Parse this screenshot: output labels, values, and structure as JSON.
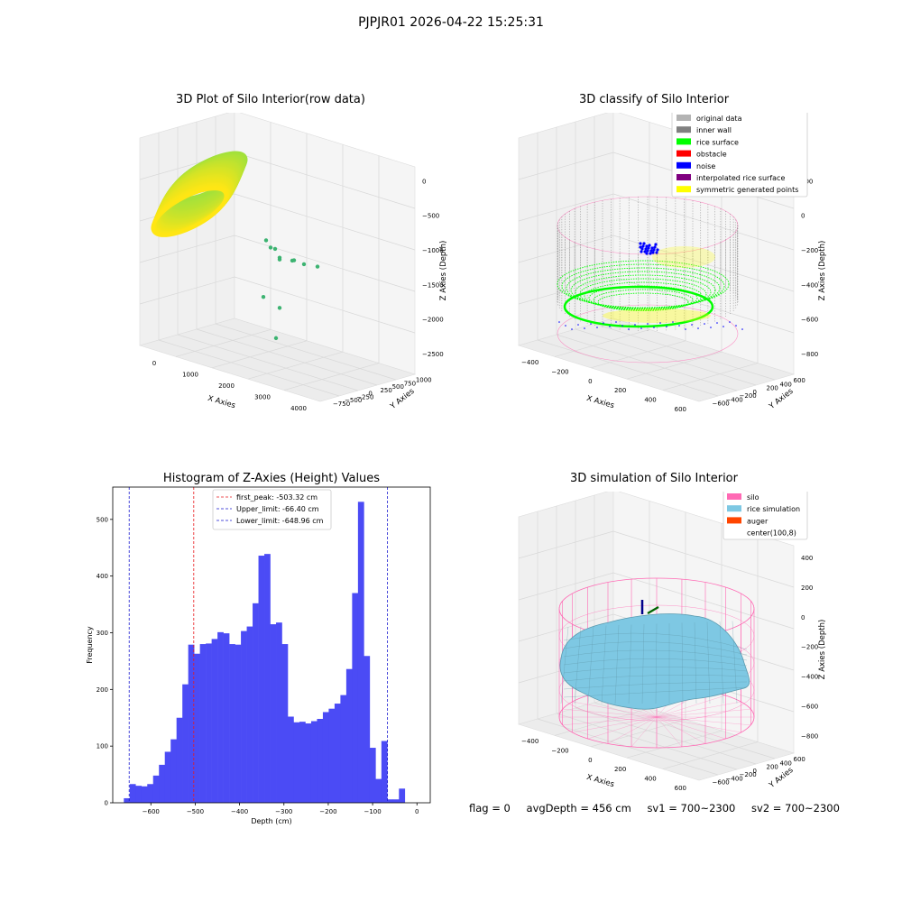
{
  "figure": {
    "suptitle": "PJPJR01 2026-04-22 15:25:31",
    "footer": {
      "flag": "flag = 0",
      "avg_depth": "avgDepth = 456 cm",
      "sv1": "sv1 = 700~2300",
      "sv2": "sv2 = 700~2300"
    }
  },
  "colors": {
    "hist_bar": "#4b4bf5",
    "first_peak_line": "#e8191c",
    "limit_line": "#1a1ad0",
    "original_data": "#b3b3b3",
    "inner_wall": "#808080",
    "rice_surface": "#00ff00",
    "obstacle": "#ff0000",
    "noise": "#0000ff",
    "interpolated_rice_surface": "#800080",
    "symmetric_generated_points": "#ffff00",
    "silo": "#ff69b4",
    "rice_simulation": "#7ec8e3",
    "auger": "#ff4500"
  },
  "chart_data": [
    {
      "type": "scatter",
      "projection": "3d",
      "title": "3D Plot of Silo Interior(row data)",
      "xlabel": "X Axies",
      "ylabel": "Y Axies",
      "zlabel": "Z Axies (Depth)",
      "x_ticks": [
        "0",
        "1000",
        "2000",
        "3000",
        "4000"
      ],
      "y_ticks": [
        "−750",
        "−500",
        "−250",
        "0",
        "250",
        "500",
        "750",
        "1000"
      ],
      "z_ticks": [
        "0",
        "−500",
        "−1000",
        "−1500",
        "−2000",
        "−2500"
      ],
      "xlim": [
        -500,
        4500
      ],
      "ylim": [
        -750,
        1000
      ],
      "zlim": [
        -2500,
        0
      ],
      "series": [
        {
          "points": [
            {
              "x": 1500,
              "y": 250,
              "z": -1150
            },
            {
              "x": 1700,
              "y": 200,
              "z": -1200
            },
            {
              "x": 1900,
              "y": 150,
              "z": -1180
            },
            {
              "x": 1800,
              "y": 300,
              "z": -1350
            },
            {
              "x": 2100,
              "y": 100,
              "z": -1250
            },
            {
              "x": 2600,
              "y": 0,
              "z": -1200
            },
            {
              "x": 2800,
              "y": -100,
              "z": -1150
            },
            {
              "x": 3000,
              "y": -50,
              "z": -1180
            },
            {
              "x": 3600,
              "y": -200,
              "z": -1100
            },
            {
              "x": 2700,
              "y": -300,
              "z": -1700
            },
            {
              "x": 1200,
              "y": 400,
              "z": -1900
            },
            {
              "x": 2900,
              "y": -500,
              "z": -2000
            }
          ]
        }
      ]
    },
    {
      "type": "scatter",
      "projection": "3d",
      "title": "3D classify of Silo Interior",
      "xlabel": "X Axies",
      "ylabel": "Y Axies",
      "zlabel": "Z Axies (Depth)",
      "x_ticks": [
        "−400",
        "−200",
        "0",
        "200",
        "400",
        "600"
      ],
      "y_ticks": [
        "−600",
        "−400",
        "−200",
        "0",
        "200",
        "400",
        "600"
      ],
      "z_ticks": [
        "200",
        "0",
        "−200",
        "−400",
        "−600",
        "−800"
      ],
      "xlim": [
        -500,
        700
      ],
      "ylim": [
        -650,
        650
      ],
      "zlim": [
        -900,
        300
      ],
      "legend": {
        "position": "top-right",
        "entries": [
          "original data",
          "inner wall",
          "rice surface",
          "obstacle",
          "noise",
          "interpolated rice surface",
          "symmetric generated points"
        ]
      }
    },
    {
      "type": "bar",
      "title": "Histogram of Z-Axies (Height) Values",
      "xlabel": "Depth (cm)",
      "ylabel": "Frequency",
      "xlim": [
        -686,
        30
      ],
      "ylim": [
        0,
        557
      ],
      "x_ticks": [
        -600,
        -500,
        -400,
        -300,
        -200,
        -100,
        0
      ],
      "x_tick_labels": [
        "−600",
        "−500",
        "−400",
        "−300",
        "−200",
        "−100",
        "0"
      ],
      "y_ticks": [
        0,
        100,
        200,
        300,
        400,
        500
      ],
      "bin_start": -661,
      "bin_width": 13.2,
      "values": [
        8,
        33,
        30,
        29,
        33,
        48,
        67,
        90,
        112,
        150,
        209,
        279,
        263,
        280,
        281,
        289,
        301,
        299,
        280,
        279,
        303,
        311,
        352,
        436,
        439,
        315,
        318,
        280,
        152,
        142,
        143,
        140,
        144,
        148,
        160,
        166,
        175,
        190,
        236,
        370,
        531,
        259,
        97,
        42,
        109,
        6,
        6,
        25
      ],
      "vlines": [
        {
          "x": -503.32,
          "style": "first_peak",
          "label": "first_peak: -503.32 cm"
        },
        {
          "x": -66.4,
          "style": "limit",
          "label": "Upper_limit: -66.40 cm"
        },
        {
          "x": -648.96,
          "style": "limit",
          "label": "Lower_limit: -648.96 cm"
        }
      ],
      "legend": {
        "position": "top-center"
      }
    },
    {
      "type": "surface",
      "projection": "3d",
      "title": "3D simulation of Silo Interior",
      "xlabel": "X Axies",
      "ylabel": "Y Axies",
      "zlabel": "Z Axies (Depth)",
      "x_ticks": [
        "−400",
        "−200",
        "0",
        "200",
        "400",
        "600"
      ],
      "y_ticks": [
        "−600",
        "−400",
        "−200",
        "0",
        "200",
        "400",
        "600"
      ],
      "z_ticks": [
        "400",
        "200",
        "0",
        "−200",
        "−400",
        "−600",
        "−800"
      ],
      "xlim": [
        -500,
        700
      ],
      "ylim": [
        -650,
        650
      ],
      "zlim": [
        -900,
        450
      ],
      "legend": {
        "position": "top-right",
        "entries": [
          "silo",
          "rice simulation",
          "auger",
          "center(100,8)"
        ]
      }
    }
  ]
}
